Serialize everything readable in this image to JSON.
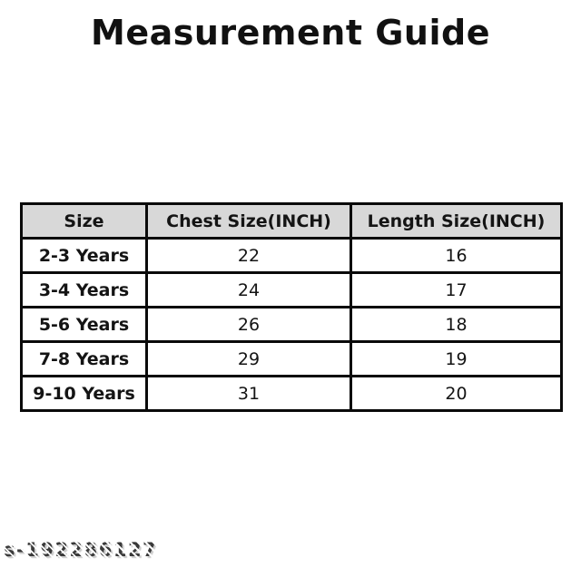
{
  "page": {
    "title": "Measurement Guide",
    "watermark": "s-192286127"
  },
  "chart_data": {
    "type": "table",
    "title": "Measurement Guide",
    "columns": [
      "Size",
      "Chest Size(INCH)",
      "Length Size(INCH)"
    ],
    "rows": [
      [
        "2-3 Years",
        22,
        16
      ],
      [
        "3-4 Years",
        24,
        17
      ],
      [
        "5-6 Years",
        26,
        18
      ],
      [
        "7-8 Years",
        29,
        19
      ],
      [
        "9-10 Years",
        31,
        20
      ]
    ]
  },
  "colors": {
    "header_bg": "#d8d8d8",
    "border": "#0a0a0a",
    "title_text": "#111111",
    "watermark_text": "#3a3a3a"
  }
}
